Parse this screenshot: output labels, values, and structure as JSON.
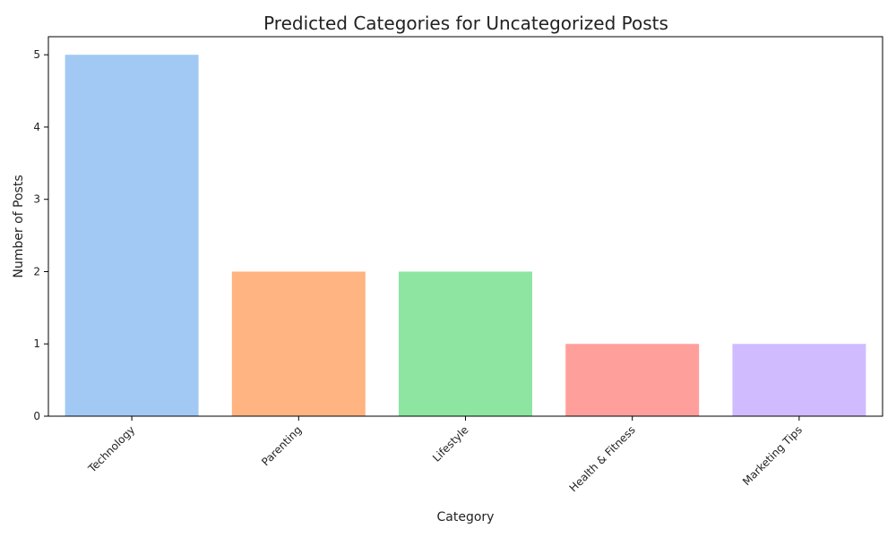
{
  "chart_data": {
    "type": "bar",
    "title": "Predicted Categories for Uncategorized Posts",
    "xlabel": "Category",
    "ylabel": "Number of Posts",
    "categories": [
      "Technology",
      "Parenting",
      "Lifestyle",
      "Health & Fitness",
      "Marketing Tips"
    ],
    "values": [
      5,
      2,
      2,
      1,
      1
    ],
    "colors": [
      "#a1c9f4",
      "#ffb482",
      "#8de5a1",
      "#ff9f9b",
      "#d0bbff"
    ],
    "ylim": [
      0,
      5.25
    ],
    "yticks": [
      0,
      1,
      2,
      3,
      4,
      5
    ],
    "grid": false,
    "legend": "none"
  }
}
